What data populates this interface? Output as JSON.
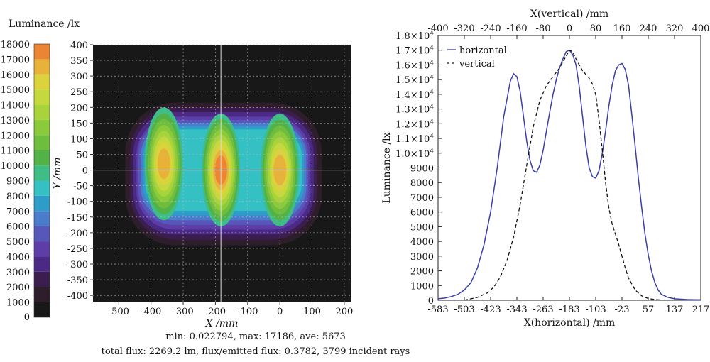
{
  "chart_data": [
    {
      "type": "heatmap",
      "colorbar": {
        "title": "Luminance /lx",
        "ticks": [
          0,
          1000,
          2000,
          3000,
          4000,
          5000,
          6000,
          7000,
          8000,
          9000,
          10000,
          11000,
          12000,
          13000,
          14000,
          15000,
          16000,
          17000,
          18000
        ],
        "colors": [
          "#181818",
          "#2e1e2c",
          "#3b1d4f",
          "#4b2a86",
          "#5d3ea8",
          "#5657b9",
          "#4a7ccb",
          "#2e9cc8",
          "#35c1c4",
          "#3fbd86",
          "#52b248",
          "#6fbd3c",
          "#8bca3a",
          "#a9d33b",
          "#c6d93c",
          "#dcd23b",
          "#e8b238",
          "#ec8533",
          "#e85a2c"
        ]
      },
      "xlabel": "X /mm",
      "ylabel": "Y /mm",
      "xlim": [
        -580,
        220
      ],
      "ylim": [
        -420,
        400
      ],
      "xticks": [
        -500,
        -400,
        -300,
        -200,
        -100,
        0,
        100,
        200
      ],
      "yticks": [
        400,
        350,
        300,
        250,
        200,
        150,
        100,
        50,
        0,
        -50,
        -100,
        -150,
        -200,
        -250,
        -300,
        -350,
        -400
      ],
      "grid": true,
      "peaks": [
        {
          "x": -360,
          "y": 20,
          "value": 15500
        },
        {
          "x": -183,
          "y": 0,
          "value": 17186
        },
        {
          "x": 0,
          "y": 0,
          "value": 16200
        }
      ],
      "stats": {
        "line1": "min: 0.022794, max: 17186, ave: 5673",
        "line2": "total flux: 2269.2 lm, flux/emitted flux: 0.3782, 3799 incident rays"
      }
    },
    {
      "type": "line",
      "ylabel": "Luminance /lx",
      "xlabel_bottom": "X(horizontal) /mm",
      "xlabel_top": "X(vertical) /mm",
      "xlim": [
        -583,
        217
      ],
      "xticks_bottom": [
        "-583",
        "-503",
        "-423",
        "-343",
        "-263",
        "-183",
        "-103",
        "-23",
        "57",
        "137",
        "217"
      ],
      "xticks_top": [
        "-400",
        "-320",
        "-240",
        "-160",
        "-80",
        "0",
        "80",
        "160",
        "240",
        "320",
        "400"
      ],
      "ylim": [
        0,
        18000
      ],
      "yticks": [
        {
          "v": 0,
          "t": "0"
        },
        {
          "v": 1000,
          "t": "1000"
        },
        {
          "v": 2000,
          "t": "2000"
        },
        {
          "v": 3000,
          "t": "3000"
        },
        {
          "v": 4000,
          "t": "4000"
        },
        {
          "v": 5000,
          "t": "5000"
        },
        {
          "v": 6000,
          "t": "6000"
        },
        {
          "v": 7000,
          "t": "7000"
        },
        {
          "v": 8000,
          "t": "8000"
        },
        {
          "v": 9000,
          "t": "9000"
        },
        {
          "v": 10000,
          "m": "1.0",
          "e": "4"
        },
        {
          "v": 11000,
          "m": "1.1",
          "e": "4"
        },
        {
          "v": 12000,
          "m": "1.2",
          "e": "4"
        },
        {
          "v": 13000,
          "m": "1.3",
          "e": "4"
        },
        {
          "v": 14000,
          "m": "1.4",
          "e": "4"
        },
        {
          "v": 15000,
          "m": "1.5",
          "e": "4"
        },
        {
          "v": 16000,
          "m": "1.6",
          "e": "4"
        },
        {
          "v": 17000,
          "m": "1.7",
          "e": "4"
        },
        {
          "v": 18000,
          "m": "1.8",
          "e": "4"
        }
      ],
      "legend_position": "top-left",
      "series": [
        {
          "name": "horizontal",
          "color": "#3a3fa8",
          "style": "solid",
          "x": [
            -583,
            -563,
            -543,
            -523,
            -503,
            -483,
            -463,
            -443,
            -423,
            -403,
            -383,
            -363,
            -353,
            -343,
            -333,
            -323,
            -313,
            -303,
            -293,
            -283,
            -273,
            -263,
            -253,
            -243,
            -233,
            -223,
            -213,
            -203,
            -193,
            -183,
            -173,
            -163,
            -153,
            -143,
            -133,
            -123,
            -113,
            -103,
            -93,
            -83,
            -73,
            -63,
            -53,
            -43,
            -33,
            -23,
            -13,
            -3,
            7,
            17,
            27,
            37,
            47,
            57,
            67,
            77,
            87,
            97,
            117,
            137,
            157,
            177,
            197,
            217
          ],
          "y": [
            100,
            150,
            250,
            400,
            700,
            1200,
            2200,
            3800,
            6000,
            9000,
            12500,
            14900,
            15400,
            15200,
            14200,
            12500,
            10800,
            9500,
            8800,
            8700,
            9200,
            10200,
            11500,
            12800,
            14000,
            15000,
            15800,
            16400,
            16900,
            17000,
            16700,
            16000,
            14500,
            12500,
            10500,
            9000,
            8400,
            8300,
            8800,
            10000,
            11500,
            13200,
            14600,
            15600,
            16000,
            16100,
            15700,
            14600,
            12600,
            10500,
            8300,
            6300,
            4500,
            3100,
            2000,
            1200,
            700,
            400,
            200,
            100,
            70,
            50,
            40,
            30
          ]
        },
        {
          "name": "vertical",
          "color": "#111111",
          "style": "dashed",
          "x": [
            -503,
            -463,
            -433,
            -413,
            -393,
            -373,
            -353,
            -333,
            -313,
            -293,
            -273,
            -253,
            -233,
            -213,
            -193,
            -183,
            -173,
            -163,
            -143,
            -123,
            -113,
            -103,
            -93,
            -83,
            -73,
            -63,
            -53,
            -43,
            -33,
            -23,
            -13,
            -3,
            17,
            37,
            57,
            77,
            97,
            117
          ],
          "y": [
            0,
            200,
            500,
            900,
            1600,
            2700,
            4300,
            6500,
            9200,
            11800,
            13600,
            14600,
            15200,
            15800,
            16600,
            17000,
            16900,
            16400,
            15600,
            15100,
            14700,
            14000,
            12300,
            10200,
            8000,
            6300,
            5200,
            4500,
            3800,
            3000,
            2200,
            1500,
            700,
            300,
            120,
            50,
            20,
            10
          ]
        }
      ]
    }
  ]
}
